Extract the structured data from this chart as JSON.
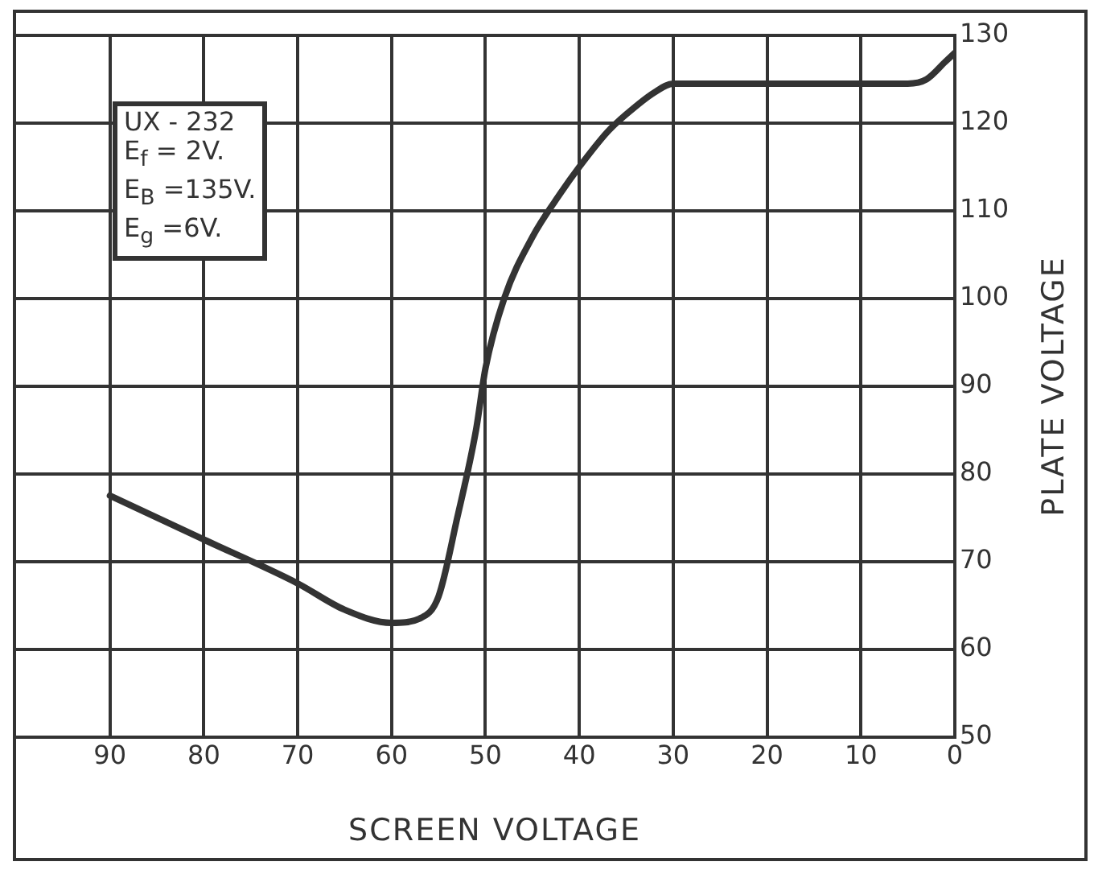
{
  "chart_data": {
    "type": "line",
    "xlabel": "SCREEN VOLTAGE",
    "ylabel": "PLATE VOLTAGE",
    "annotations": [
      "UX - 232",
      "E$_{f}$ = 2V.",
      "E$_{B}$ =135V.",
      "E$_{g}$ =6V."
    ],
    "x": [
      90,
      85,
      80,
      70,
      65,
      60,
      57,
      55,
      53,
      51,
      50,
      48,
      45,
      42,
      40,
      37,
      35,
      32,
      30,
      20,
      10,
      5,
      3,
      1,
      0
    ],
    "series": [
      {
        "color": "#333333",
        "values": [
          77.5,
          75,
          72.5,
          67.5,
          64.5,
          63,
          63.5,
          66,
          75,
          85,
          92,
          100,
          107,
          112,
          115,
          119,
          121,
          123.5,
          124.5,
          124.5,
          124.5,
          124.5,
          125,
          127,
          128
        ]
      }
    ],
    "xlim": [
      100,
      0
    ],
    "xticks": [
      90,
      80,
      70,
      60,
      50,
      40,
      30,
      20,
      10,
      0
    ],
    "ylim": [
      50,
      130
    ],
    "yticks": [
      50,
      60,
      70,
      80,
      90,
      100,
      110,
      120,
      130
    ],
    "grid": true,
    "legend": false,
    "marker": "none",
    "line_style": "solid"
  }
}
